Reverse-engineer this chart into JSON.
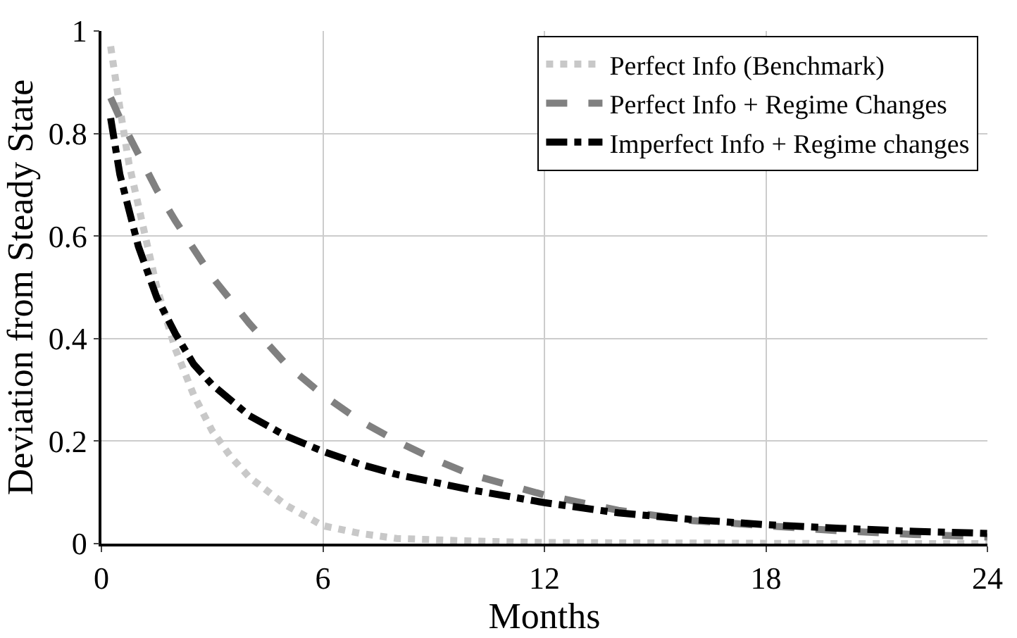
{
  "chart_data": {
    "type": "line",
    "xlabel": "Months",
    "ylabel": "Deviation from Steady State",
    "xlim": [
      0,
      24
    ],
    "xticks": [
      0,
      6,
      12,
      18,
      24
    ],
    "ylim": [
      0,
      1
    ],
    "yticks": [
      0,
      0.2,
      0.4,
      0.6,
      0.8,
      1
    ],
    "grid": true,
    "legend": "top right",
    "marker": "none",
    "series": [
      {
        "name": "Perfect Info (Benchmark)",
        "color": "#c8c8c8",
        "line_style": "dotted",
        "x": [
          0.25,
          0.5,
          0.75,
          1,
          1.5,
          2,
          2.5,
          3,
          3.5,
          4,
          5,
          6,
          7,
          8,
          10,
          12,
          16,
          20,
          24
        ],
        "values": [
          0.97,
          0.85,
          0.74,
          0.66,
          0.5,
          0.38,
          0.29,
          0.22,
          0.17,
          0.13,
          0.075,
          0.035,
          0.02,
          0.01,
          0.005,
          0.002,
          0.001,
          0,
          0
        ]
      },
      {
        "name": "Perfect Info + Regime Changes",
        "color": "#808080",
        "line_style": "dashed",
        "x": [
          0.25,
          0.5,
          1,
          1.5,
          2,
          3,
          4,
          5,
          6,
          7,
          8,
          9,
          10,
          12,
          14,
          16,
          18,
          20,
          22,
          24
        ],
        "values": [
          0.87,
          0.83,
          0.76,
          0.69,
          0.63,
          0.52,
          0.43,
          0.35,
          0.29,
          0.24,
          0.2,
          0.165,
          0.135,
          0.095,
          0.065,
          0.045,
          0.035,
          0.025,
          0.018,
          0.013
        ]
      },
      {
        "name": "Imperfect Info + Regime changes",
        "color": "#000000",
        "line_style": "dashdot",
        "x": [
          0.25,
          0.5,
          1,
          1.5,
          2,
          2.5,
          3,
          4,
          5,
          6,
          7,
          8,
          10,
          12,
          14,
          16,
          18,
          20,
          22,
          24
        ],
        "values": [
          0.83,
          0.72,
          0.58,
          0.48,
          0.41,
          0.35,
          0.31,
          0.25,
          0.21,
          0.18,
          0.155,
          0.135,
          0.105,
          0.08,
          0.06,
          0.047,
          0.037,
          0.03,
          0.024,
          0.02
        ]
      }
    ]
  }
}
